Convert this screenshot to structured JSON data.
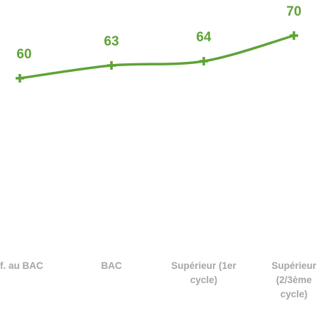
{
  "chart_data": {
    "type": "line",
    "categories": [
      "f. au BAC",
      "BAC",
      "Supérieur (1er cycle)",
      "Supérieur (2/3ème cycle)"
    ],
    "series": [
      {
        "name": null,
        "color": "#5ea336",
        "values": [
          60,
          63,
          64,
          70
        ]
      }
    ],
    "ylim": [
      50,
      75
    ],
    "grid": false
  }
}
